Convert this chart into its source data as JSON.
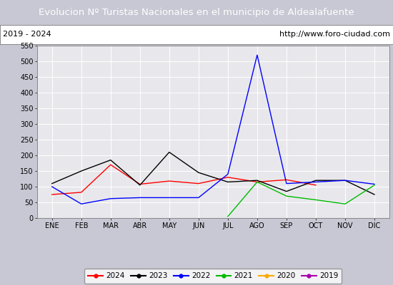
{
  "title": "Evolucion Nº Turistas Nacionales en el municipio de Aldealafuente",
  "subtitle_left": "2019 - 2024",
  "subtitle_right": "http://www.foro-ciudad.com",
  "months": [
    "ENE",
    "FEB",
    "MAR",
    "ABR",
    "MAY",
    "JUN",
    "JUL",
    "AGO",
    "SEP",
    "OCT",
    "NOV",
    "DIC"
  ],
  "ylim": [
    0,
    550
  ],
  "yticks": [
    0,
    50,
    100,
    150,
    200,
    250,
    300,
    350,
    400,
    450,
    500,
    550
  ],
  "series": {
    "2024": {
      "color": "#ff0000",
      "values": [
        75,
        82,
        170,
        108,
        118,
        110,
        130,
        115,
        122,
        105,
        null,
        null
      ]
    },
    "2023": {
      "color": "#000000",
      "values": [
        110,
        150,
        185,
        105,
        210,
        145,
        115,
        120,
        85,
        120,
        120,
        75
      ]
    },
    "2022": {
      "color": "#0000ff",
      "values": [
        100,
        45,
        62,
        65,
        65,
        65,
        140,
        520,
        110,
        115,
        120,
        108
      ]
    },
    "2021": {
      "color": "#00bb00",
      "values": [
        null,
        null,
        null,
        null,
        null,
        null,
        5,
        115,
        70,
        58,
        45,
        105
      ]
    },
    "2020": {
      "color": "#ffaa00",
      "values": [
        null,
        null,
        null,
        null,
        null,
        null,
        null,
        null,
        null,
        null,
        null,
        null
      ]
    },
    "2019": {
      "color": "#aa00aa",
      "values": [
        null,
        null,
        null,
        null,
        null,
        null,
        null,
        null,
        null,
        null,
        null,
        null
      ]
    }
  },
  "legend_order": [
    "2024",
    "2023",
    "2022",
    "2021",
    "2020",
    "2019"
  ],
  "title_bg_color": "#4a7abf",
  "title_text_color": "#ffffff",
  "subtitle_bg_color": "#ffffff",
  "plot_bg_color": "#e8e8ec",
  "grid_color": "#ffffff",
  "outer_bg_color": "#c8c8d4"
}
